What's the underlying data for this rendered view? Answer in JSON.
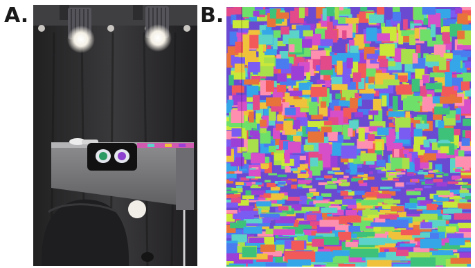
{
  "figure": {
    "panels": [
      {
        "label": "A.",
        "kind": "photograph",
        "subject": "head-mounted-display-test-rig"
      },
      {
        "label": "B.",
        "kind": "rendered-scene",
        "subject": "random-colored-rectangle-room"
      }
    ],
    "mosaic_palette": [
      "#e24a8a",
      "#9b3fd6",
      "#3ec27a",
      "#f0c23b",
      "#4a7cf0",
      "#e8733a",
      "#5bd3c9",
      "#a7e04a",
      "#d64fc8",
      "#7a5cf2",
      "#f25a5a",
      "#35a6e8",
      "#c9e83a",
      "#ff8fb0",
      "#6ee06a"
    ]
  }
}
